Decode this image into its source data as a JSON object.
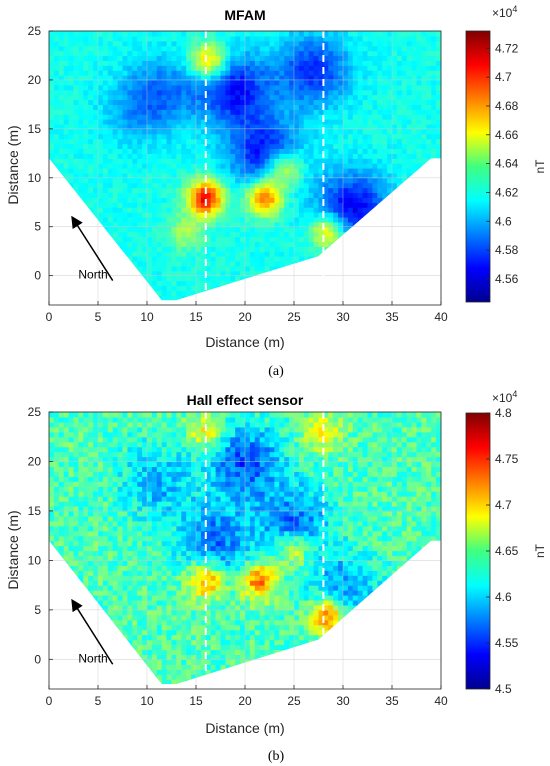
{
  "figure": {
    "panels": [
      {
        "caption": "(a)",
        "colorbar": {
          "exponent_base": "×10",
          "exponent_power": "4",
          "unit_label": "nT",
          "tick_labels": [
            "4.56",
            "4.58",
            "4.6",
            "4.62",
            "4.64",
            "4.66",
            "4.68",
            "4.7",
            "4.72"
          ]
        },
        "north_label": "North"
      },
      {
        "caption": "(b)",
        "colorbar": {
          "exponent_base": "×10",
          "exponent_power": "4",
          "unit_label": "nT",
          "tick_labels": [
            "4.5",
            "4.55",
            "4.6",
            "4.65",
            "4.7",
            "4.75",
            "4.8"
          ]
        },
        "north_label": "North"
      }
    ]
  },
  "chart_data": [
    {
      "type": "heatmap",
      "title": "MFAM",
      "xlabel": "Distance (m)",
      "ylabel": "Distance (m)",
      "xlim": [
        0,
        40
      ],
      "ylim": [
        -3,
        25
      ],
      "xticks": [
        0,
        5,
        10,
        15,
        20,
        25,
        30,
        35,
        40
      ],
      "yticks": [
        0,
        5,
        10,
        15,
        20,
        25
      ],
      "grid": true,
      "colormap": "jet",
      "clim": [
        45440,
        47320
      ],
      "colorbar_unit": "nT",
      "background_value": 46180,
      "anomalies": [
        {
          "x": 16,
          "y": 8,
          "value": 47100,
          "kind": "high"
        },
        {
          "x": 16.3,
          "y": 22,
          "value": 46800,
          "kind": "high"
        },
        {
          "x": 22,
          "y": 8,
          "value": 46950,
          "kind": "high"
        },
        {
          "x": 24,
          "y": 11,
          "value": 46700,
          "kind": "high"
        },
        {
          "x": 28.5,
          "y": 4.5,
          "value": 46750,
          "kind": "high"
        },
        {
          "x": 14,
          "y": 4.5,
          "value": 46450,
          "kind": "high"
        },
        {
          "x": 19,
          "y": 19,
          "value": 45700,
          "kind": "low"
        },
        {
          "x": 27,
          "y": 21,
          "value": 45750,
          "kind": "low"
        },
        {
          "x": 31,
          "y": 7,
          "value": 45650,
          "kind": "low"
        },
        {
          "x": 22,
          "y": 12.5,
          "value": 45700,
          "kind": "low"
        },
        {
          "x": 12,
          "y": 19,
          "value": 45950,
          "kind": "low"
        },
        {
          "x": 9,
          "y": 17,
          "value": 45980,
          "kind": "low"
        }
      ],
      "survey_lines_x": [
        16,
        28
      ],
      "coverage_bottom_boundary": [
        [
          0,
          12
        ],
        [
          11.5,
          -2.5
        ],
        [
          13,
          -2.5
        ],
        [
          27.5,
          2
        ],
        [
          39,
          12
        ],
        [
          40,
          12
        ]
      ]
    },
    {
      "type": "heatmap",
      "title": "Hall effect sensor",
      "xlabel": "Distance (m)",
      "ylabel": "Distance (m)",
      "xlim": [
        0,
        40
      ],
      "ylim": [
        -3,
        25
      ],
      "xticks": [
        0,
        5,
        10,
        15,
        20,
        25,
        30,
        35,
        40
      ],
      "yticks": [
        0,
        5,
        10,
        15,
        20,
        25
      ],
      "grid": true,
      "colormap": "jet",
      "clim": [
        45000,
        48000
      ],
      "colorbar_unit": "nT",
      "background_value": 46350,
      "anomalies": [
        {
          "x": 16,
          "y": 8,
          "value": 47300,
          "kind": "high"
        },
        {
          "x": 21.5,
          "y": 8,
          "value": 47350,
          "kind": "high"
        },
        {
          "x": 28.5,
          "y": 4.5,
          "value": 47500,
          "kind": "high"
        },
        {
          "x": 16,
          "y": 23,
          "value": 46950,
          "kind": "high"
        },
        {
          "x": 28,
          "y": 23,
          "value": 46900,
          "kind": "high"
        },
        {
          "x": 25,
          "y": 11,
          "value": 46950,
          "kind": "high"
        },
        {
          "x": 20,
          "y": 20,
          "value": 45600,
          "kind": "low"
        },
        {
          "x": 17,
          "y": 12,
          "value": 45700,
          "kind": "low"
        },
        {
          "x": 25,
          "y": 14,
          "value": 45700,
          "kind": "low"
        },
        {
          "x": 30,
          "y": 7,
          "value": 45800,
          "kind": "low"
        },
        {
          "x": 11,
          "y": 18,
          "value": 45900,
          "kind": "low"
        }
      ],
      "survey_lines_x": [
        16,
        28
      ],
      "coverage_bottom_boundary": [
        [
          0,
          12
        ],
        [
          11.5,
          -2.5
        ],
        [
          13,
          -2.5
        ],
        [
          27.5,
          2
        ],
        [
          39,
          12
        ],
        [
          40,
          12
        ]
      ]
    }
  ]
}
